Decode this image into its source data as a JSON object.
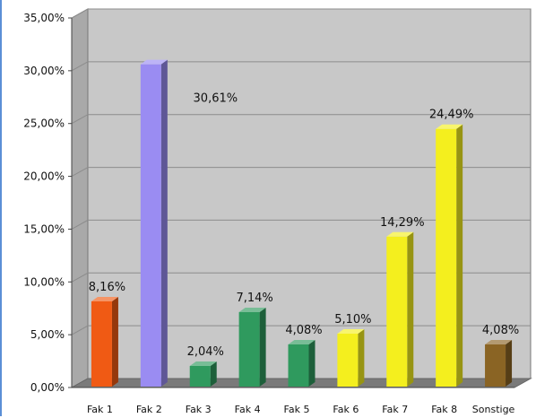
{
  "chart_data": {
    "type": "bar",
    "title": "",
    "xlabel": "",
    "ylabel": "",
    "categories": [
      "Fak 1",
      "Fak 2",
      "Fak 3",
      "Fak 4",
      "Fak 5",
      "Fak 6",
      "Fak 7",
      "Fak 8",
      "Sonstige"
    ],
    "values": [
      8.16,
      30.61,
      2.04,
      7.14,
      4.08,
      5.1,
      14.29,
      24.49,
      4.08
    ],
    "data_labels": [
      "8,16%",
      "30,61%",
      "2,04%",
      "7,14%",
      "4,08%",
      "5,10%",
      "14,29%",
      "24,49%",
      "4,08%"
    ],
    "bar_colors": [
      "#f05a14",
      "#9a8cf2",
      "#2f9a5e",
      "#2f9a5e",
      "#2f9a5e",
      "#f4ef1e",
      "#f4ef1e",
      "#f4ef1e",
      "#8a6424"
    ],
    "ylim": [
      0,
      35
    ],
    "yticks": [
      0,
      5,
      10,
      15,
      20,
      25,
      30,
      35
    ],
    "ytick_labels": [
      "0,00%",
      "5,00%",
      "10,00%",
      "15,00%",
      "20,00%",
      "25,00%",
      "30,00%",
      "35,00%"
    ],
    "grid": true,
    "style": "3d-column",
    "colors": {
      "wall": "#c8c8c8",
      "floor": "#7a7a7a",
      "gridline": "#8c8c8c"
    }
  }
}
